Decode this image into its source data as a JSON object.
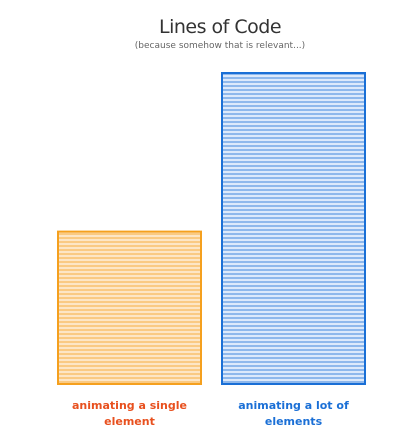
{
  "chart_data": {
    "type": "bar",
    "title": "Lines of Code",
    "subtitle": "(because somehow that is relevant...)",
    "categories": [
      "animating a single element",
      "animating a lot of elements"
    ],
    "values": [
      49,
      100
    ],
    "colors": [
      "#f5a01e",
      "#1a6fd6"
    ],
    "fill_colors": [
      "#fde6c6",
      "#dce9fb"
    ],
    "label_colors": [
      "#e8501e",
      "#1a6fd6"
    ]
  }
}
